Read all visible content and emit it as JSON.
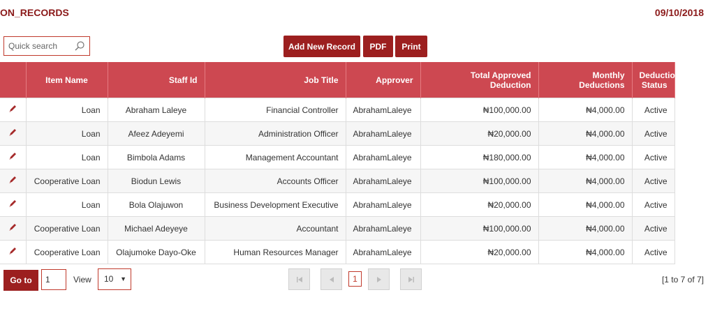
{
  "header": {
    "title": "ON_RECORDS",
    "date": "09/10/2018"
  },
  "search": {
    "placeholder": "Quick search"
  },
  "toolbar": {
    "add_label": "Add New Record",
    "pdf_label": "PDF",
    "print_label": "Print"
  },
  "table": {
    "columns": [
      "",
      "Item Name",
      "Staff Id",
      "Job Title",
      "Approver",
      "Total Approved Deduction",
      "Monthly Deductions",
      "Deduction Status"
    ],
    "rows": [
      [
        "Loan",
        "Abraham Laleye",
        "Financial Controller",
        "AbrahamLaleye",
        "₦100,000.00",
        "₦4,000.00",
        "Active"
      ],
      [
        "Loan",
        "Afeez Adeyemi",
        "Administration Officer",
        "AbrahamLaleye",
        "₦20,000.00",
        "₦4,000.00",
        "Active"
      ],
      [
        "Loan",
        "Bimbola Adams",
        "Management Accountant",
        "AbrahamLaleye",
        "₦180,000.00",
        "₦4,000.00",
        "Active"
      ],
      [
        "Cooperative Loan",
        "Biodun Lewis",
        "Accounts Officer",
        "AbrahamLaleye",
        "₦100,000.00",
        "₦4,000.00",
        "Active"
      ],
      [
        "Loan",
        "Bola Olajuwon",
        "Business Development Executive",
        "AbrahamLaleye",
        "₦20,000.00",
        "₦4,000.00",
        "Active"
      ],
      [
        "Cooperative Loan",
        "Michael Adeyeye",
        "Accountant",
        "AbrahamLaleye",
        "₦100,000.00",
        "₦4,000.00",
        "Active"
      ],
      [
        "Cooperative Loan",
        "Olajumoke Dayo-Oke",
        "Human Resources Manager",
        "AbrahamLaleye",
        "₦20,000.00",
        "₦4,000.00",
        "Active"
      ]
    ]
  },
  "pager": {
    "goto_label": "Go to",
    "page_value": "1",
    "view_label": "View",
    "view_value": "10",
    "current_page": "1",
    "range_text": "[1 to 7 of 7]"
  },
  "icons": {
    "row_action": "pencil-icon",
    "search": "search-icon"
  },
  "colors": {
    "accent": "#9c1f1f",
    "header_bg": "#cd4851",
    "title": "#8b1a1a"
  }
}
